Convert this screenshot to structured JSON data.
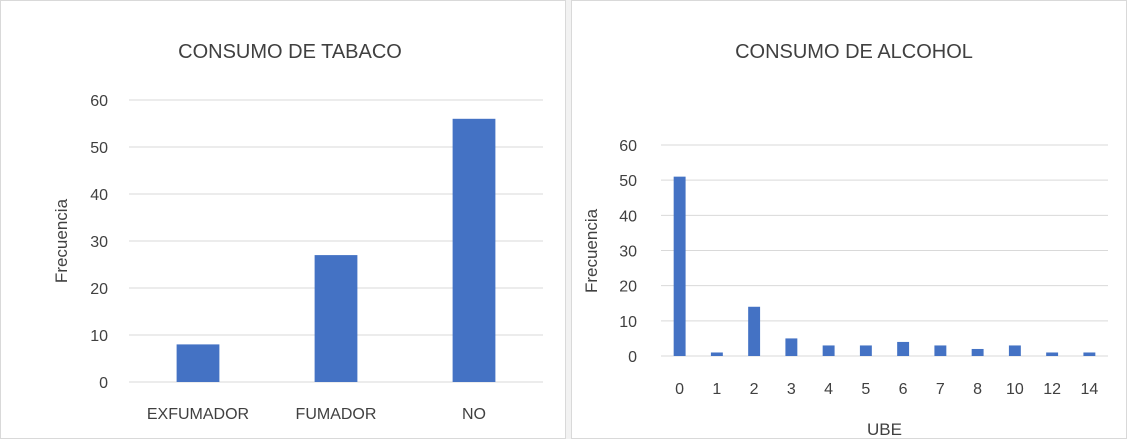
{
  "colors": {
    "bar": "#4472C4",
    "grid": "#d9d9d9",
    "text": "#404040",
    "border": "#d9d9d9"
  },
  "chart_data": [
    {
      "type": "bar",
      "title": "CONSUMO DE TABACO",
      "xlabel": "",
      "ylabel": "Frecuencia",
      "categories": [
        "EXFUMADOR",
        "FUMADOR",
        "NO"
      ],
      "values": [
        8,
        27,
        56
      ],
      "ylim": [
        0,
        60
      ],
      "yticks": [
        0,
        10,
        20,
        30,
        40,
        50,
        60
      ],
      "grid": true,
      "legend": "none"
    },
    {
      "type": "bar",
      "title": "CONSUMO DE ALCOHOL",
      "xlabel": "UBE",
      "ylabel": "Frecuencia",
      "categories": [
        "0",
        "1",
        "2",
        "3",
        "4",
        "5",
        "6",
        "7",
        "8",
        "10",
        "12",
        "14"
      ],
      "values": [
        51,
        1,
        14,
        5,
        3,
        3,
        4,
        3,
        2,
        3,
        1,
        1
      ],
      "ylim": [
        0,
        60
      ],
      "yticks": [
        0,
        10,
        20,
        30,
        40,
        50,
        60
      ],
      "grid": true,
      "legend": "none"
    }
  ]
}
